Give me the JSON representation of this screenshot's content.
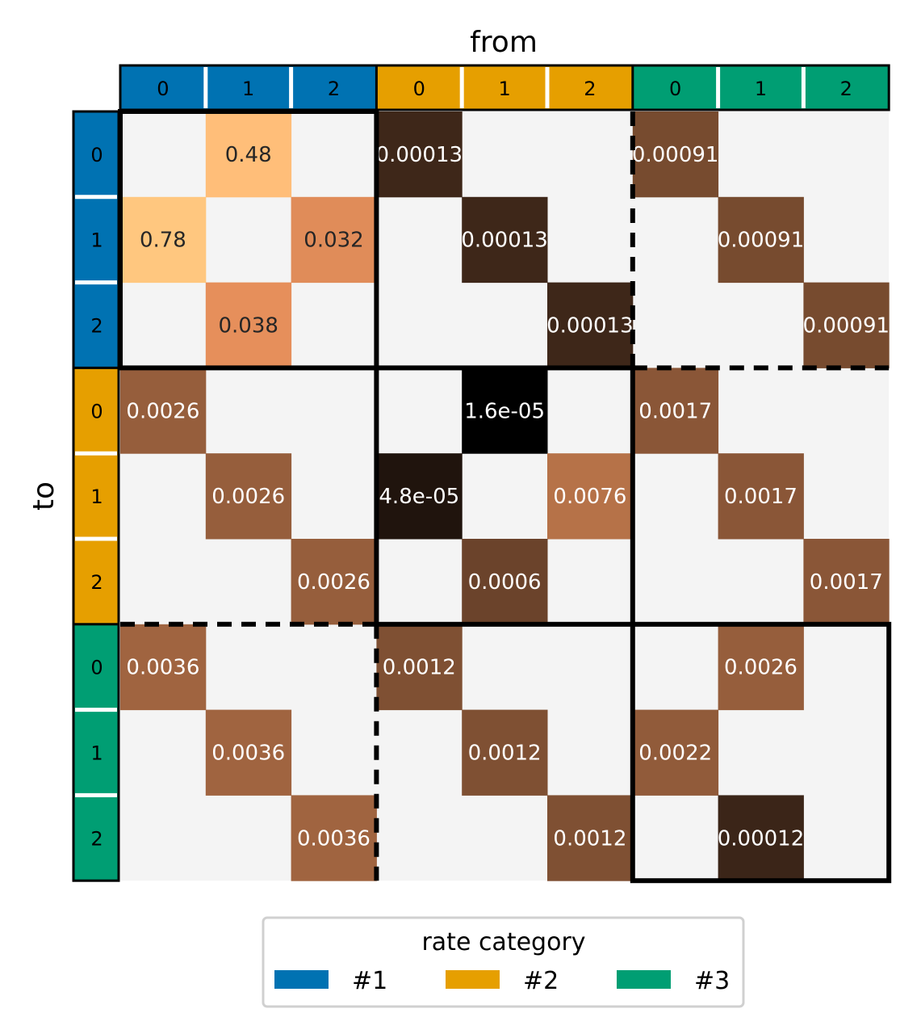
{
  "chart_data": {
    "type": "heatmap",
    "xlabel": "from",
    "ylabel": "to",
    "categories": [
      "0",
      "1",
      "2",
      "0",
      "1",
      "2",
      "0",
      "1",
      "2"
    ],
    "groups": [
      {
        "label": "#1",
        "color": "#0072b2"
      },
      {
        "label": "#2",
        "color": "#e69f00"
      },
      {
        "label": "#3",
        "color": "#009e73"
      }
    ],
    "cells": [
      {
        "to": 0,
        "from": 1,
        "label": "0.48",
        "value": 0.48
      },
      {
        "to": 0,
        "from": 3,
        "label": "0.00013",
        "value": 0.00013
      },
      {
        "to": 0,
        "from": 6,
        "label": "0.00091",
        "value": 0.00091
      },
      {
        "to": 1,
        "from": 0,
        "label": "0.78",
        "value": 0.78
      },
      {
        "to": 1,
        "from": 2,
        "label": "0.032",
        "value": 0.032
      },
      {
        "to": 1,
        "from": 4,
        "label": "0.00013",
        "value": 0.00013
      },
      {
        "to": 1,
        "from": 7,
        "label": "0.00091",
        "value": 0.00091
      },
      {
        "to": 2,
        "from": 1,
        "label": "0.038",
        "value": 0.038
      },
      {
        "to": 2,
        "from": 5,
        "label": "0.00013",
        "value": 0.00013
      },
      {
        "to": 2,
        "from": 8,
        "label": "0.00091",
        "value": 0.00091
      },
      {
        "to": 3,
        "from": 0,
        "label": "0.0026",
        "value": 0.0026
      },
      {
        "to": 3,
        "from": 4,
        "label": "1.6e-05",
        "value": 1.6e-05
      },
      {
        "to": 3,
        "from": 6,
        "label": "0.0017",
        "value": 0.0017
      },
      {
        "to": 4,
        "from": 1,
        "label": "0.0026",
        "value": 0.0026
      },
      {
        "to": 4,
        "from": 3,
        "label": "4.8e-05",
        "value": 4.8e-05
      },
      {
        "to": 4,
        "from": 5,
        "label": "0.0076",
        "value": 0.0076
      },
      {
        "to": 4,
        "from": 7,
        "label": "0.0017",
        "value": 0.0017
      },
      {
        "to": 5,
        "from": 2,
        "label": "0.0026",
        "value": 0.0026
      },
      {
        "to": 5,
        "from": 4,
        "label": "0.0006",
        "value": 0.0006
      },
      {
        "to": 5,
        "from": 8,
        "label": "0.0017",
        "value": 0.0017
      },
      {
        "to": 6,
        "from": 0,
        "label": "0.0036",
        "value": 0.0036
      },
      {
        "to": 6,
        "from": 3,
        "label": "0.0012",
        "value": 0.0012
      },
      {
        "to": 6,
        "from": 7,
        "label": "0.0026",
        "value": 0.0026
      },
      {
        "to": 7,
        "from": 1,
        "label": "0.0036",
        "value": 0.0036
      },
      {
        "to": 7,
        "from": 4,
        "label": "0.0012",
        "value": 0.0012
      },
      {
        "to": 7,
        "from": 6,
        "label": "0.0022",
        "value": 0.0022
      },
      {
        "to": 8,
        "from": 2,
        "label": "0.0036",
        "value": 0.0036
      },
      {
        "to": 8,
        "from": 5,
        "label": "0.0012",
        "value": 0.0012
      },
      {
        "to": 8,
        "from": 7,
        "label": "0.00012",
        "value": 0.00012
      }
    ],
    "empty_color": "#f4f4f4",
    "colormap": "copper",
    "color_scale": "log",
    "legend": {
      "title": "rate category",
      "position": "bottom-center"
    }
  }
}
